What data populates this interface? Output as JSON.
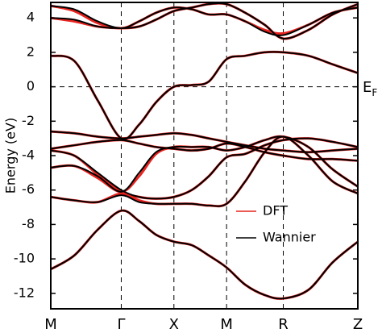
{
  "chart_data": {
    "type": "line",
    "y_label": "Energy (eV)",
    "annotation": {
      "text": "E",
      "sub": "F"
    },
    "fermi_level": 0,
    "x": [
      0,
      0.29,
      0.58,
      0.87,
      1.09,
      1.3,
      1.52,
      1.74,
      1.95,
      2.17,
      2.4,
      2.64,
      2.87,
      3.18,
      3.48,
      3.79
    ],
    "xlim": [
      0,
      3.79
    ],
    "xticks": [
      {
        "value": 0,
        "label": "M"
      },
      {
        "value": 0.87,
        "label": "Γ"
      },
      {
        "value": 1.52,
        "label": "X"
      },
      {
        "value": 2.17,
        "label": "M"
      },
      {
        "value": 2.87,
        "label": "R"
      },
      {
        "value": 3.79,
        "label": "Z"
      }
    ],
    "ylim": [
      -12.9,
      4.9
    ],
    "yticks": [
      -12,
      -10,
      -8,
      -6,
      -4,
      -2,
      0,
      2,
      4
    ],
    "series": [
      {
        "name": "DFT",
        "color": "#e8231f",
        "bands": [
          [
            -10.6,
            -9.8,
            -8.3,
            -7.2,
            -7.8,
            -8.6,
            -9.0,
            -9.2,
            -9.8,
            -10.5,
            -11.5,
            -12.1,
            -12.3,
            -11.8,
            -10.2,
            -9.0
          ],
          [
            -6.4,
            -6.6,
            -6.7,
            -6.2,
            -6.6,
            -6.8,
            -6.8,
            -6.8,
            -6.9,
            -6.8,
            -5.5,
            -3.8,
            -2.9,
            -4.0,
            -5.5,
            -6.2
          ],
          [
            -4.7,
            -4.6,
            -5.3,
            -6.1,
            -5.2,
            -3.9,
            -3.5,
            -3.5,
            -3.5,
            -3.7,
            -3.5,
            -3.1,
            -2.9,
            -3.5,
            -4.8,
            -5.8
          ],
          [
            -3.7,
            -4.0,
            -5.1,
            -6.1,
            -6.4,
            -6.5,
            -6.4,
            -6.0,
            -5.2,
            -4.1,
            -3.9,
            -3.4,
            -3.1,
            -3.0,
            -3.2,
            -3.5
          ],
          [
            -3.6,
            -3.4,
            -3.2,
            -3.1,
            -3.3,
            -3.5,
            -3.6,
            -3.7,
            -3.6,
            -3.3,
            -3.5,
            -3.8,
            -4.0,
            -4.2,
            -4.2,
            -4.3
          ],
          [
            -2.6,
            -2.7,
            -2.9,
            -3.0,
            -2.9,
            -2.8,
            -2.7,
            -2.8,
            -3.0,
            -3.2,
            -3.4,
            -3.6,
            -3.7,
            -3.8,
            -3.7,
            -3.6
          ],
          [
            1.8,
            1.5,
            -0.8,
            -3.0,
            -2.2,
            -0.9,
            0.0,
            0.1,
            0.3,
            1.6,
            1.8,
            2.0,
            2.0,
            1.8,
            1.3,
            0.8
          ],
          [
            4.7,
            4.4,
            3.7,
            3.4,
            3.8,
            4.3,
            4.6,
            4.5,
            4.2,
            4.2,
            3.8,
            3.3,
            3.1,
            3.6,
            4.3,
            4.6
          ],
          [
            4.0,
            3.8,
            3.5,
            3.4,
            3.5,
            3.9,
            4.4,
            4.6,
            4.8,
            4.8,
            4.3,
            3.6,
            2.8,
            3.3,
            4.2,
            4.8
          ]
        ]
      },
      {
        "name": "Wannier",
        "color": "#000000",
        "bands": [
          [
            -10.6,
            -9.8,
            -8.3,
            -7.2,
            -7.8,
            -8.6,
            -9.0,
            -9.2,
            -9.8,
            -10.5,
            -11.5,
            -12.1,
            -12.3,
            -11.8,
            -10.2,
            -9.0
          ],
          [
            -6.4,
            -6.6,
            -6.7,
            -6.3,
            -6.7,
            -6.8,
            -6.8,
            -6.8,
            -6.9,
            -6.8,
            -5.5,
            -3.8,
            -2.9,
            -4.0,
            -5.5,
            -6.2
          ],
          [
            -4.7,
            -4.6,
            -5.2,
            -6.1,
            -5.0,
            -3.8,
            -3.5,
            -3.5,
            -3.5,
            -3.7,
            -3.5,
            -3.1,
            -2.9,
            -3.5,
            -4.8,
            -5.8
          ],
          [
            -3.7,
            -4.0,
            -5.0,
            -6.0,
            -6.4,
            -6.5,
            -6.4,
            -6.0,
            -5.2,
            -4.1,
            -3.9,
            -3.4,
            -3.1,
            -3.0,
            -3.2,
            -3.5
          ],
          [
            -3.6,
            -3.4,
            -3.2,
            -3.1,
            -3.3,
            -3.5,
            -3.6,
            -3.7,
            -3.6,
            -3.3,
            -3.5,
            -3.8,
            -4.0,
            -4.2,
            -4.2,
            -4.3
          ],
          [
            -2.6,
            -2.7,
            -2.9,
            -3.0,
            -2.9,
            -2.8,
            -2.7,
            -2.8,
            -3.0,
            -3.2,
            -3.4,
            -3.6,
            -3.7,
            -3.8,
            -3.7,
            -3.6
          ],
          [
            1.8,
            1.5,
            -0.8,
            -3.0,
            -2.2,
            -0.9,
            0.0,
            0.1,
            0.3,
            1.6,
            1.8,
            2.0,
            2.0,
            1.8,
            1.3,
            0.8
          ],
          [
            4.7,
            4.5,
            3.8,
            3.4,
            3.8,
            4.3,
            4.6,
            4.5,
            4.2,
            4.2,
            3.8,
            3.2,
            3.0,
            3.6,
            4.3,
            4.6
          ],
          [
            4.0,
            3.9,
            3.5,
            3.4,
            3.5,
            3.9,
            4.4,
            4.6,
            4.8,
            4.8,
            4.3,
            3.6,
            2.8,
            3.3,
            4.2,
            4.8
          ]
        ]
      }
    ],
    "grid": true
  }
}
